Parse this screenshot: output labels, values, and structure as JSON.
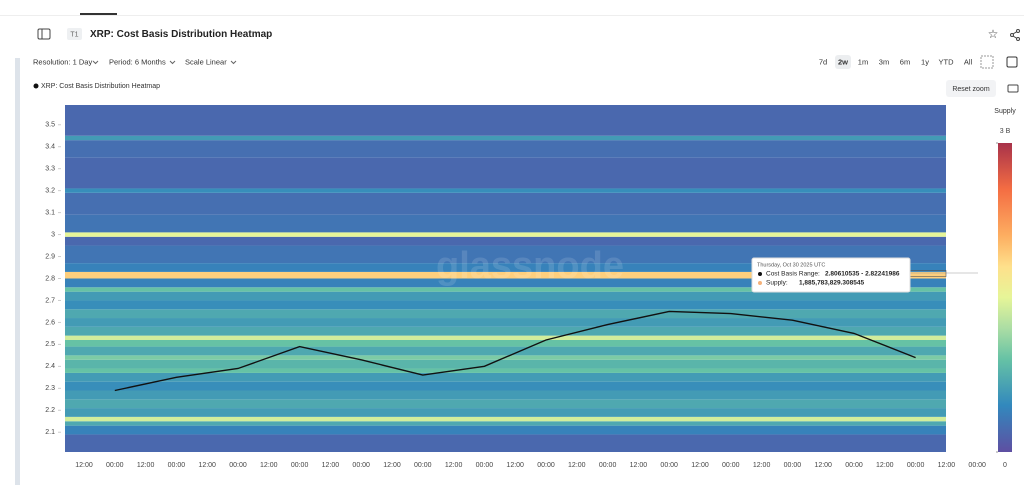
{
  "toolbar": {
    "tab_badge": "T1",
    "title": "XRP: Cost Basis Distribution Heatmap",
    "resolution": "Resolution: 1 Day",
    "period": "Period: 6 Months",
    "scale": "Scale Linear",
    "ranges": [
      "7d",
      "2w",
      "1m",
      "3m",
      "6m",
      "1y",
      "YTD",
      "All"
    ],
    "active_range": "2w",
    "reset_zoom": "Reset zoom"
  },
  "chart_data": {
    "type": "heatmap",
    "legend_name": "XRP: Cost Basis Distribution Heatmap",
    "watermark": "glassnode",
    "categories": [
      "12:00",
      "00:00",
      "12:00",
      "00:00",
      "12:00",
      "00:00",
      "12:00",
      "00:00",
      "12:00",
      "00:00",
      "12:00",
      "00:00",
      "12:00",
      "00:00",
      "12:00",
      "00:00",
      "12:00",
      "00:00",
      "12:00",
      "00:00",
      "12:00",
      "00:00",
      "12:00",
      "00:00",
      "12:00",
      "00:00",
      "12:00",
      "00:00",
      "12:00",
      "00:00"
    ],
    "bins": [
      2.01,
      2.09,
      2.13,
      2.15,
      2.17,
      2.21,
      2.25,
      2.29,
      2.33,
      2.37,
      2.39,
      2.43,
      2.45,
      2.49,
      2.52,
      2.54,
      2.58,
      2.62,
      2.66,
      2.7,
      2.74,
      2.76,
      2.8,
      2.83,
      2.87,
      2.95,
      2.99,
      3.01,
      3.09,
      3.19,
      3.21,
      3.35,
      3.43,
      3.45,
      3.59
    ],
    "supply": [
      200000000,
      400000000,
      700000000,
      1400000000,
      600000000,
      700000000,
      600000000,
      500000000,
      600000000,
      900000000,
      800000000,
      1000000000,
      700000000,
      900000000,
      1400000000,
      700000000,
      600000000,
      700000000,
      500000000,
      600000000,
      900000000,
      400000000,
      1900000000,
      400000000,
      300000000,
      200000000,
      1500000000,
      300000000,
      250000000,
      500000000,
      200000000,
      250000000,
      600000000,
      200000000
    ],
    "ylim": [
      2.01,
      3.59
    ],
    "yticks": [
      2.1,
      2.2,
      2.3,
      2.4,
      2.5,
      2.6,
      2.7,
      2.8,
      2.9,
      3,
      3.1,
      3.2,
      3.3,
      3.4,
      3.5
    ],
    "colorbar": {
      "title": "Supply",
      "lim": [
        0,
        3000000000
      ],
      "ticks": [
        0,
        {
          "value": 3000000000,
          "label": "3 B"
        }
      ]
    },
    "line": {
      "name": "XRP: Cost Basis Distribution Heatmap",
      "color": "#111111",
      "values": [
        2.29,
        2.35,
        2.39,
        2.49,
        2.43,
        2.36,
        2.4,
        2.52,
        2.59,
        2.65,
        2.64,
        2.61,
        2.55,
        2.44
      ]
    },
    "tooltip": {
      "date": "Thursday, Oct 30 2025 UTC",
      "rows": [
        {
          "label": "Cost Basis Range:",
          "value": "2.80610535 - 2.82241986",
          "color": "#111111"
        },
        {
          "label": "Supply:",
          "value": "1,885,783,829.308545",
          "color": "#f5b27a"
        }
      ]
    }
  }
}
